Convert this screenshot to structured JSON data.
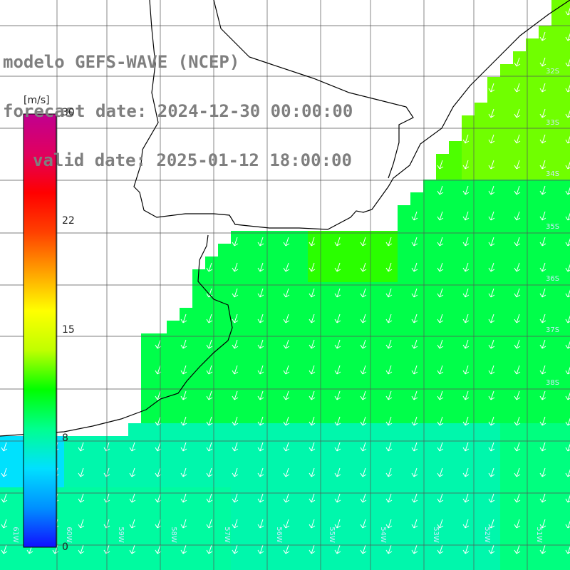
{
  "title": {
    "model": "modelo GEFS-WAVE (NCEP)",
    "forecast": "forecast date: 2024-12-30 00:00:00",
    "valid": "valid date: 2025-01-12 18:00:00"
  },
  "colorbar": {
    "unit": "[m/s]",
    "ticks": [
      "30",
      "22",
      "15",
      "8",
      "0"
    ],
    "tick_values": [
      30,
      22,
      15,
      8,
      0
    ],
    "range": [
      0,
      30
    ],
    "colors": [
      "#1010ff",
      "#0090ff",
      "#00e0ff",
      "#00ff90",
      "#00ff00",
      "#c0ff00",
      "#ffff00",
      "#ffa000",
      "#ff4000",
      "#ff0000",
      "#e00060",
      "#c00090"
    ]
  },
  "map": {
    "lat_labels": [
      "32S",
      "33S",
      "34S",
      "35S",
      "36S",
      "37S",
      "38S"
    ],
    "lon_labels": [
      "61W",
      "60W",
      "59W",
      "58W",
      "57W",
      "56W",
      "55W",
      "54W",
      "53W",
      "52W",
      "51W"
    ],
    "wind_direction": "southwest",
    "colors": {
      "land": "#ffffff",
      "grid": "#555555",
      "coast": "#000000",
      "arrow": "#ffffff"
    }
  }
}
